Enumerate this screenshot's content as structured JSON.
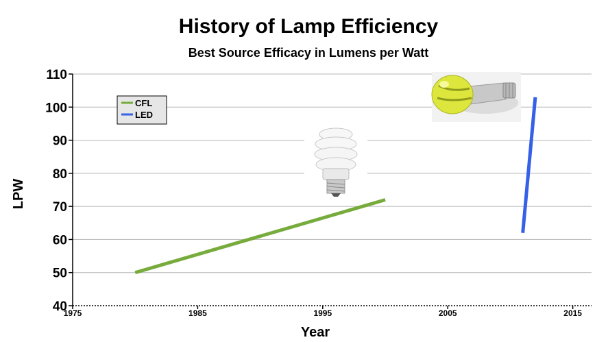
{
  "chart_data": {
    "type": "line",
    "title": "History of Lamp Efficiency",
    "subtitle": "Best Source Efficacy in Lumens per Watt",
    "xlabel": "Year",
    "ylabel": "LPW",
    "xlim": [
      1975,
      2016.5
    ],
    "ylim": [
      40,
      110
    ],
    "xticks": [
      1975,
      1985,
      1995,
      2005,
      2015
    ],
    "yticks": [
      40,
      50,
      60,
      70,
      80,
      90,
      100,
      110
    ],
    "grid": true,
    "legend_position": "top-left",
    "series": [
      {
        "name": "CFL",
        "color": "#77ac3d",
        "x": [
          1980,
          2000
        ],
        "y": [
          50,
          72
        ]
      },
      {
        "name": "LED",
        "color": "#3560e8",
        "x": [
          2011,
          2012
        ],
        "y": [
          62,
          103
        ]
      }
    ]
  },
  "images": {
    "cfl_bulb": "cfl-bulb-photo",
    "led_bulb": "led-bulb-photo"
  }
}
